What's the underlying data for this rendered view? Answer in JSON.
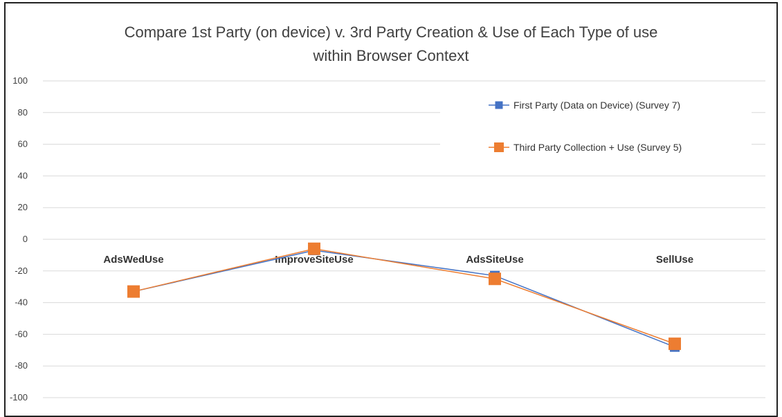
{
  "chart_data": {
    "type": "line",
    "title": "Compare 1st Party (on device) v. 3rd Party Creation & Use of Each Type of use",
    "subtitle": "within Browser Context",
    "categories": [
      "AdsWedUse",
      "ImproveSiteUse",
      "AdsSiteUse",
      "SellUse"
    ],
    "yticks": [
      "100",
      "80",
      "60",
      "40",
      "20",
      "0",
      "-20",
      "-40",
      "-60",
      "-80",
      "-100"
    ],
    "ylim": [
      -100,
      100
    ],
    "grid": true,
    "legend_position": "top-right",
    "series": [
      {
        "name": "First Party (Data on Device) (Survey 7)",
        "values": [
          -33,
          -7,
          -23,
          -68
        ],
        "color": "#4472C4"
      },
      {
        "name": "Third Party Collection + Use (Survey 5)",
        "values": [
          -33,
          -6,
          -25,
          -66
        ],
        "color": "#ED7D31"
      }
    ]
  }
}
